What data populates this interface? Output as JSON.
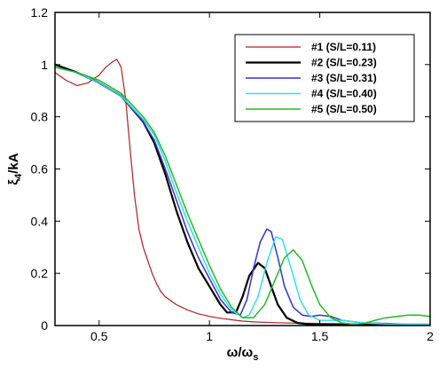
{
  "chart_data": {
    "type": "line",
    "title": "",
    "xlabel": {
      "main": "ω/ω",
      "sub": "s"
    },
    "ylabel": {
      "main": "ξ",
      "sub": "4",
      "tail": "/kA"
    },
    "xlim": [
      0.3,
      2.0
    ],
    "ylim": [
      0,
      1.2
    ],
    "xticks": [
      0.5,
      1,
      1.5,
      2
    ],
    "xtick_labels": [
      "0.5",
      "1",
      "1.5",
      "2"
    ],
    "yticks": [
      0,
      0.2,
      0.4,
      0.6,
      0.8,
      1,
      1.2
    ],
    "ytick_labels": [
      "0",
      "0.2",
      "0.4",
      "0.6",
      "0.8",
      "1",
      "1.2"
    ],
    "grid": false,
    "legend_position": "top-right",
    "series": [
      {
        "name": "#1 (S/L=0.11)",
        "color": "#b02020",
        "stroke": 1.2,
        "x": [
          0.3,
          0.35,
          0.4,
          0.45,
          0.5,
          0.53,
          0.56,
          0.58,
          0.6,
          0.62,
          0.64,
          0.66,
          0.68,
          0.7,
          0.72,
          0.74,
          0.76,
          0.78,
          0.8,
          0.85,
          0.9,
          0.95,
          1.0,
          1.05,
          1.1,
          1.15,
          1.2,
          1.3,
          1.4,
          1.5,
          1.6,
          1.7,
          1.8,
          1.9,
          2.0
        ],
        "y": [
          0.97,
          0.94,
          0.92,
          0.93,
          0.96,
          0.99,
          1.01,
          1.02,
          0.99,
          0.87,
          0.68,
          0.5,
          0.37,
          0.3,
          0.25,
          0.2,
          0.16,
          0.13,
          0.11,
          0.08,
          0.06,
          0.045,
          0.035,
          0.028,
          0.022,
          0.017,
          0.014,
          0.011,
          0.009,
          0.008,
          0.007,
          0.006,
          0.005,
          0.005,
          0.005
        ]
      },
      {
        "name": "#2 (S/L=0.23)",
        "color": "#000000",
        "stroke": 2.2,
        "x": [
          0.3,
          0.4,
          0.5,
          0.6,
          0.7,
          0.75,
          0.8,
          0.85,
          0.9,
          0.95,
          1.0,
          1.05,
          1.08,
          1.12,
          1.15,
          1.18,
          1.22,
          1.25,
          1.28,
          1.31,
          1.35,
          1.4,
          1.45,
          1.5,
          1.55,
          1.6,
          1.65,
          1.7,
          1.8,
          1.9,
          2.0
        ],
        "y": [
          1.0,
          0.97,
          0.93,
          0.88,
          0.78,
          0.7,
          0.58,
          0.44,
          0.32,
          0.22,
          0.15,
          0.08,
          0.05,
          0.05,
          0.11,
          0.19,
          0.24,
          0.22,
          0.15,
          0.08,
          0.03,
          0.01,
          0.005,
          0.003,
          0.003,
          0.003,
          0.003,
          0.003,
          0.003,
          0.003,
          0.003
        ]
      },
      {
        "name": "#3 (S/L=0.31)",
        "color": "#3333cc",
        "stroke": 1.5,
        "x": [
          0.3,
          0.4,
          0.5,
          0.6,
          0.7,
          0.75,
          0.8,
          0.85,
          0.9,
          0.95,
          1.0,
          1.05,
          1.1,
          1.14,
          1.17,
          1.2,
          1.23,
          1.26,
          1.28,
          1.31,
          1.34,
          1.38,
          1.42,
          1.46,
          1.5,
          1.55,
          1.6,
          1.7,
          1.8,
          1.9,
          2.0
        ],
        "y": [
          0.99,
          0.97,
          0.93,
          0.88,
          0.78,
          0.71,
          0.6,
          0.48,
          0.36,
          0.26,
          0.18,
          0.1,
          0.05,
          0.04,
          0.1,
          0.22,
          0.32,
          0.37,
          0.36,
          0.26,
          0.15,
          0.07,
          0.04,
          0.035,
          0.04,
          0.035,
          0.02,
          0.01,
          0.008,
          0.005,
          0.005
        ]
      },
      {
        "name": "#4 (S/L=0.40)",
        "color": "#33ddee",
        "stroke": 1.5,
        "x": [
          0.3,
          0.4,
          0.5,
          0.6,
          0.7,
          0.75,
          0.8,
          0.85,
          0.9,
          0.95,
          1.0,
          1.05,
          1.1,
          1.15,
          1.18,
          1.22,
          1.26,
          1.3,
          1.33,
          1.37,
          1.41,
          1.45,
          1.5,
          1.55,
          1.6,
          1.65,
          1.7,
          1.8,
          1.9,
          2.0
        ],
        "y": [
          0.99,
          0.97,
          0.93,
          0.88,
          0.79,
          0.73,
          0.63,
          0.51,
          0.4,
          0.3,
          0.2,
          0.12,
          0.06,
          0.03,
          0.04,
          0.11,
          0.24,
          0.34,
          0.33,
          0.22,
          0.1,
          0.04,
          0.02,
          0.02,
          0.02,
          0.015,
          0.01,
          0.006,
          0.005,
          0.005
        ]
      },
      {
        "name": "#5 (S/L=0.50)",
        "color": "#22bb22",
        "stroke": 1.5,
        "x": [
          0.3,
          0.4,
          0.5,
          0.6,
          0.7,
          0.75,
          0.8,
          0.85,
          0.9,
          0.95,
          1.0,
          1.05,
          1.1,
          1.15,
          1.2,
          1.25,
          1.3,
          1.34,
          1.38,
          1.42,
          1.46,
          1.5,
          1.55,
          1.6,
          1.65,
          1.7,
          1.75,
          1.8,
          1.85,
          1.9,
          1.95,
          2.0
        ],
        "y": [
          0.99,
          0.97,
          0.94,
          0.89,
          0.8,
          0.74,
          0.65,
          0.54,
          0.43,
          0.33,
          0.23,
          0.14,
          0.07,
          0.03,
          0.03,
          0.08,
          0.18,
          0.26,
          0.29,
          0.25,
          0.16,
          0.08,
          0.03,
          0.01,
          0.005,
          0.008,
          0.02,
          0.03,
          0.035,
          0.04,
          0.04,
          0.035
        ]
      }
    ]
  }
}
